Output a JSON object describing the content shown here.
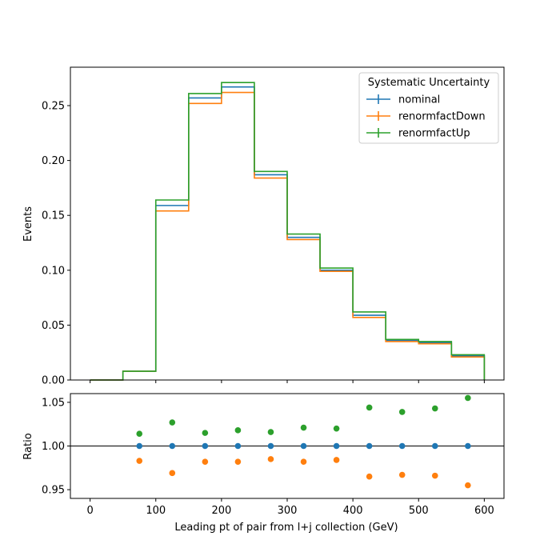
{
  "chart_data": [
    {
      "type": "line",
      "drawstyle": "step",
      "xlabel": "",
      "ylabel": "Events",
      "xlim": [
        -30,
        630
      ],
      "ylim": [
        0,
        0.285
      ],
      "yticks": [
        0.0,
        0.05,
        0.1,
        0.15,
        0.2,
        0.25
      ],
      "ytick_labels": [
        "0.00",
        "0.05",
        "0.10",
        "0.15",
        "0.20",
        "0.25"
      ],
      "bin_edges": [
        0,
        50,
        100,
        150,
        200,
        250,
        300,
        350,
        400,
        450,
        500,
        550,
        600
      ],
      "legend": {
        "title": "Systematic Uncertainty",
        "placement": "upper right"
      },
      "series": [
        {
          "name": "nominal",
          "color": "#1f77b4",
          "values": [
            0.0,
            0.008,
            0.159,
            0.257,
            0.267,
            0.187,
            0.13,
            0.1,
            0.059,
            0.036,
            0.034,
            0.022
          ]
        },
        {
          "name": "renormfactDown",
          "color": "#ff7f0e",
          "values": [
            0.0,
            0.008,
            0.154,
            0.252,
            0.262,
            0.184,
            0.128,
            0.099,
            0.057,
            0.035,
            0.033,
            0.021
          ]
        },
        {
          "name": "renormfactUp",
          "color": "#2ca02c",
          "values": [
            0.0,
            0.008,
            0.164,
            0.261,
            0.271,
            0.19,
            0.133,
            0.102,
            0.062,
            0.037,
            0.035,
            0.023
          ]
        }
      ]
    },
    {
      "type": "scatter",
      "xlabel": "Leading pt of pair from l+j collection (GeV)",
      "ylabel": "Ratio",
      "xlim": [
        -30,
        630
      ],
      "ylim": [
        0.94,
        1.06
      ],
      "xticks": [
        0,
        100,
        200,
        300,
        400,
        500,
        600
      ],
      "xtick_labels": [
        "0",
        "100",
        "200",
        "300",
        "400",
        "500",
        "600"
      ],
      "yticks": [
        0.95,
        1.0,
        1.05
      ],
      "ytick_labels": [
        "0.95",
        "1.00",
        "1.05"
      ],
      "reference_line": 1.0,
      "x": [
        75,
        125,
        175,
        225,
        275,
        325,
        375,
        425,
        475,
        525,
        575
      ],
      "series": [
        {
          "name": "nominal",
          "color": "#1f77b4",
          "values": [
            1.0,
            1.0,
            1.0,
            1.0,
            1.0,
            1.0,
            1.0,
            1.0,
            1.0,
            1.0,
            1.0
          ]
        },
        {
          "name": "renormfactDown",
          "color": "#ff7f0e",
          "values": [
            0.983,
            0.969,
            0.982,
            0.982,
            0.985,
            0.982,
            0.984,
            0.965,
            0.967,
            0.966,
            0.955
          ]
        },
        {
          "name": "renormfactUp",
          "color": "#2ca02c",
          "values": [
            1.014,
            1.027,
            1.015,
            1.018,
            1.016,
            1.021,
            1.02,
            1.044,
            1.039,
            1.043,
            1.055
          ]
        }
      ]
    }
  ]
}
